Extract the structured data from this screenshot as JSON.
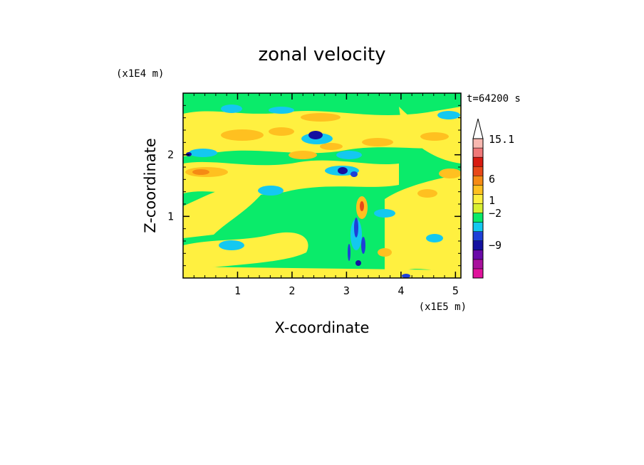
{
  "chart_data": {
    "type": "heatmap",
    "title": "zonal velocity",
    "time_label": "t=64200 s",
    "xlabel": "X-coordinate",
    "ylabel": "Z-coordinate",
    "x_scale_label": "(x1E5 m)",
    "y_scale_label": "(x1E4 m)",
    "xlim": [
      0,
      5.1
    ],
    "ylim": [
      0,
      3
    ],
    "x_ticks": [
      "1",
      "2",
      "3",
      "4",
      "5"
    ],
    "y_ticks": [
      "1",
      "2"
    ],
    "x_tick_values": [
      1,
      2,
      3,
      4,
      5
    ],
    "y_tick_values": [
      1,
      2
    ],
    "colorbar": {
      "labels": [
        "15.1",
        "6",
        "1",
        "−2",
        "−9"
      ],
      "colors": [
        "#e0139c",
        "#a8109c",
        "#6a0aa8",
        "#1410a0",
        "#1e40d8",
        "#14c8f0",
        "#0aeb6a",
        "#d8f032",
        "#fff040",
        "#ffc020",
        "#f58a14",
        "#e84818",
        "#d81a10",
        "#f07878",
        "#f8b8b0",
        "#ffffff"
      ]
    },
    "grid": false
  }
}
